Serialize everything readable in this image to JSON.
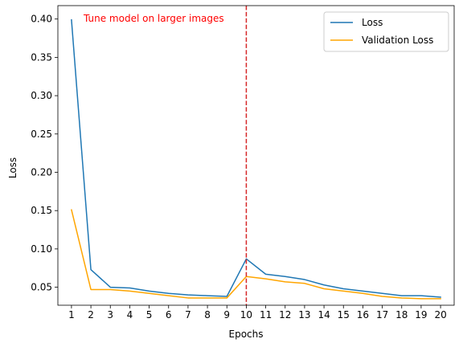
{
  "chart_data": {
    "type": "line",
    "xlabel": "Epochs",
    "ylabel": "Loss",
    "x": [
      1,
      2,
      3,
      4,
      5,
      6,
      7,
      8,
      9,
      10,
      11,
      12,
      13,
      14,
      15,
      16,
      17,
      18,
      19,
      20
    ],
    "xticks": [
      "1",
      "2",
      "3",
      "4",
      "5",
      "6",
      "7",
      "8",
      "9",
      "10",
      "11",
      "12",
      "13",
      "14",
      "15",
      "16",
      "17",
      "18",
      "19",
      "20"
    ],
    "xlim": [
      0.3,
      20.7
    ],
    "ylim": [
      0.0265,
      0.4175
    ],
    "yticks": [
      0.05,
      0.1,
      0.15,
      0.2,
      0.25,
      0.3,
      0.35,
      0.4
    ],
    "ytick_labels": [
      "0.05",
      "0.10",
      "0.15",
      "0.20",
      "0.25",
      "0.30",
      "0.35",
      "0.40"
    ],
    "series": [
      {
        "name": "Loss",
        "color": "#1f77b4",
        "values": [
          0.399,
          0.073,
          0.05,
          0.049,
          0.045,
          0.042,
          0.04,
          0.039,
          0.038,
          0.087,
          0.067,
          0.064,
          0.06,
          0.053,
          0.048,
          0.045,
          0.042,
          0.039,
          0.039,
          0.037
        ]
      },
      {
        "name": "Validation Loss",
        "color": "#ffa500",
        "values": [
          0.151,
          0.047,
          0.047,
          0.045,
          0.042,
          0.039,
          0.036,
          0.036,
          0.036,
          0.064,
          0.061,
          0.057,
          0.055,
          0.048,
          0.045,
          0.042,
          0.038,
          0.036,
          0.035,
          0.035
        ]
      }
    ],
    "annotation": {
      "text": "Tune model on larger images",
      "color": "#ff0000",
      "line_x": 10,
      "line_color": "#d62728"
    },
    "legend": "upper-right",
    "grid": false
  }
}
